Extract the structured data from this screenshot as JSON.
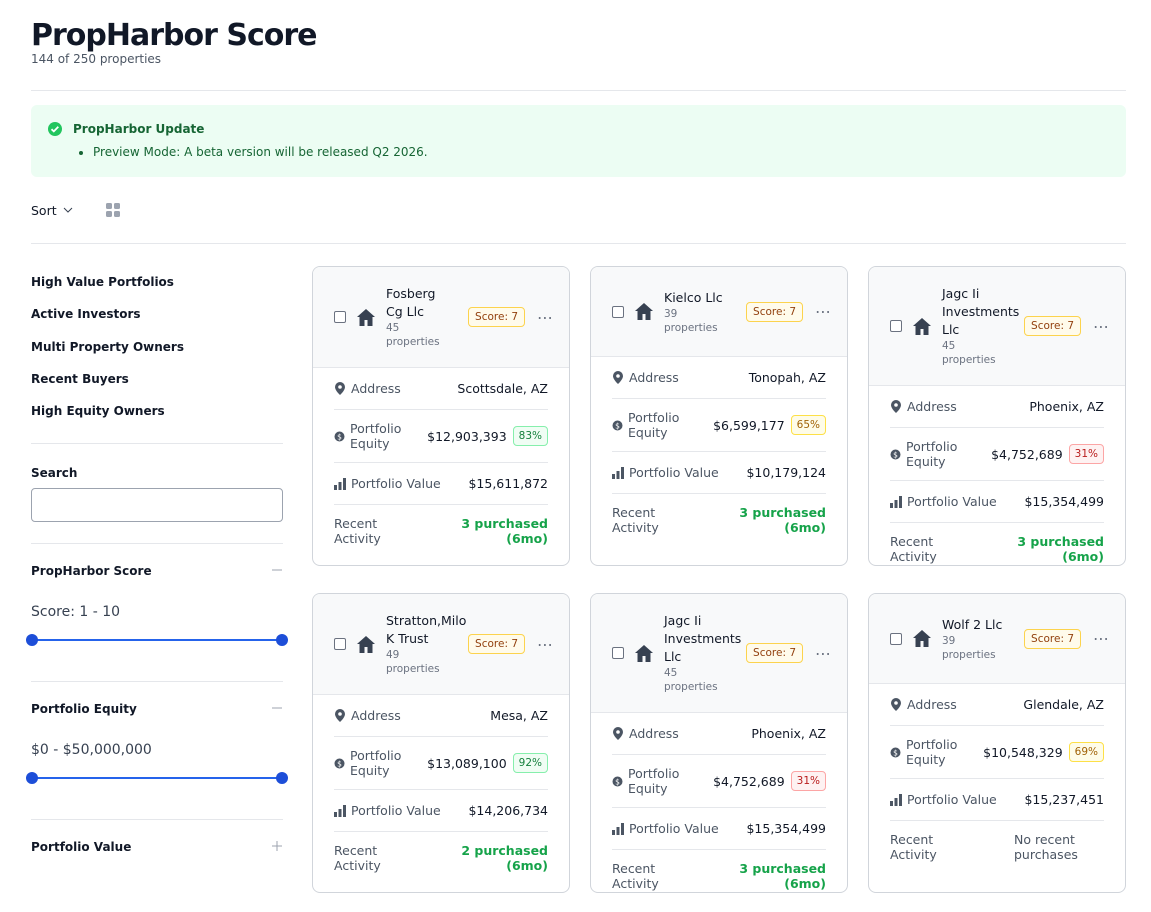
{
  "header": {
    "title": "PropHarbor Score",
    "subtitle": "144 of 250 properties"
  },
  "alert": {
    "title": "PropHarbor Update",
    "items": [
      "Preview Mode: A beta version will be released Q2 2026."
    ]
  },
  "toolbar": {
    "sort": "Sort"
  },
  "sidebar": {
    "presets": [
      "High Value Portfolios",
      "Active Investors",
      "Multi Property Owners",
      "Recent Buyers",
      "High Equity Owners"
    ],
    "search_label": "Search",
    "filters": [
      {
        "title": "PropHarbor Score",
        "range": "Score: 1 - 10",
        "open": true
      },
      {
        "title": "Portfolio Equity",
        "range": "$0 - $50,000,000",
        "open": true
      },
      {
        "title": "Portfolio Value",
        "open": false
      }
    ]
  },
  "card_labels": {
    "address": "Address",
    "equity": "Portfolio Equity",
    "value": "Portfolio Value",
    "activity": "Recent Activity"
  },
  "cards": [
    {
      "name": "Fosberg Cg Llc",
      "count": "45 properties",
      "score": "Score: 7",
      "address": "Scottsdale, AZ",
      "equity": "$12,903,393",
      "equity_pct": "83%",
      "equity_tone": "green",
      "value": "$15,611,872",
      "activity": "3 purchased (6mo)",
      "activity_tone": "green"
    },
    {
      "name": "Kielco Llc",
      "count": "39 properties",
      "score": "Score: 7",
      "address": "Tonopah, AZ",
      "equity": "$6,599,177",
      "equity_pct": "65%",
      "equity_tone": "yellow",
      "value": "$10,179,124",
      "activity": "3 purchased (6mo)",
      "activity_tone": "green"
    },
    {
      "name": "Jagc Ii Investments Llc",
      "count": "45 properties",
      "score": "Score: 7",
      "address": "Phoenix, AZ",
      "equity": "$4,752,689",
      "equity_pct": "31%",
      "equity_tone": "red",
      "value": "$15,354,499",
      "activity": "3 purchased (6mo)",
      "activity_tone": "green"
    },
    {
      "name": "Stratton,Milo K Trust",
      "count": "49 properties",
      "score": "Score: 7",
      "address": "Mesa, AZ",
      "equity": "$13,089,100",
      "equity_pct": "92%",
      "equity_tone": "green",
      "value": "$14,206,734",
      "activity": "2 purchased (6mo)",
      "activity_tone": "green"
    },
    {
      "name": "Jagc Ii Investments Llc",
      "count": "45 properties",
      "score": "Score: 7",
      "address": "Phoenix, AZ",
      "equity": "$4,752,689",
      "equity_pct": "31%",
      "equity_tone": "red",
      "value": "$15,354,499",
      "activity": "3 purchased (6mo)",
      "activity_tone": "green"
    },
    {
      "name": "Wolf 2 Llc",
      "count": "39 properties",
      "score": "Score: 7",
      "address": "Glendale, AZ",
      "equity": "$10,548,329",
      "equity_pct": "69%",
      "equity_tone": "yellow",
      "value": "$15,237,451",
      "activity": "No recent purchases",
      "activity_tone": "gray"
    }
  ]
}
